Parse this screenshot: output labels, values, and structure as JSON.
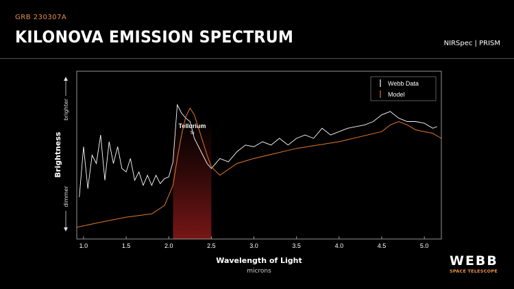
{
  "header": {
    "eyebrow": "GRB 230307A",
    "title": "KILONOVA EMISSION SPECTRUM",
    "instrument": "NIRSpec | PRISM"
  },
  "logo": {
    "name": "WEBB",
    "subtitle": "SPACE TELESCOPE"
  },
  "colors": {
    "background": "#000000",
    "accent": "#e8904a",
    "rule": "#555555",
    "data_line": "#ffffff",
    "model_line": "#e07a2e",
    "highlight_band": "#8b1a1a"
  },
  "chart_data": {
    "type": "line",
    "xlabel": "Wavelength of Light",
    "xunit": "microns",
    "ylabel": "Brightness",
    "y_top_label": "brighter",
    "y_bottom_label": "dimmer",
    "xlim": [
      0.92,
      5.2
    ],
    "ylim": [
      0,
      1
    ],
    "xticks": [
      1.0,
      1.5,
      2.0,
      2.5,
      3.0,
      3.5,
      4.0,
      4.5,
      5.0
    ],
    "xtick_labels": [
      "1.0",
      "1.5",
      "2.0",
      "2.5",
      "3.0",
      "3.5",
      "4.0",
      "4.5",
      "5.0"
    ],
    "grid": false,
    "legend_position": "top-right",
    "annotation": {
      "label": "Tellurium",
      "sublabel": "Te",
      "x_range": [
        2.05,
        2.5
      ]
    },
    "series": [
      {
        "name": "Webb Data",
        "x": [
          0.95,
          1.0,
          1.05,
          1.1,
          1.15,
          1.2,
          1.25,
          1.3,
          1.35,
          1.4,
          1.45,
          1.5,
          1.55,
          1.6,
          1.65,
          1.7,
          1.75,
          1.8,
          1.85,
          1.9,
          1.95,
          2.0,
          2.05,
          2.1,
          2.15,
          2.2,
          2.25,
          2.3,
          2.35,
          2.4,
          2.45,
          2.5,
          2.6,
          2.7,
          2.8,
          2.9,
          3.0,
          3.1,
          3.2,
          3.3,
          3.4,
          3.5,
          3.6,
          3.7,
          3.8,
          3.9,
          4.0,
          4.1,
          4.2,
          4.3,
          4.4,
          4.5,
          4.6,
          4.7,
          4.8,
          4.9,
          5.0,
          5.1,
          5.15
        ],
        "values": [
          0.25,
          0.55,
          0.3,
          0.5,
          0.45,
          0.62,
          0.35,
          0.58,
          0.45,
          0.55,
          0.42,
          0.4,
          0.48,
          0.35,
          0.4,
          0.32,
          0.38,
          0.32,
          0.38,
          0.33,
          0.36,
          0.37,
          0.46,
          0.8,
          0.75,
          0.72,
          0.7,
          0.6,
          0.55,
          0.5,
          0.45,
          0.42,
          0.48,
          0.46,
          0.52,
          0.56,
          0.55,
          0.58,
          0.56,
          0.6,
          0.56,
          0.6,
          0.62,
          0.6,
          0.66,
          0.62,
          0.64,
          0.66,
          0.67,
          0.68,
          0.7,
          0.74,
          0.76,
          0.72,
          0.7,
          0.7,
          0.69,
          0.66,
          0.67
        ]
      },
      {
        "name": "Model",
        "x": [
          0.92,
          1.2,
          1.5,
          1.8,
          1.95,
          2.05,
          2.1,
          2.15,
          2.2,
          2.25,
          2.3,
          2.35,
          2.4,
          2.45,
          2.5,
          2.6,
          2.8,
          3.0,
          3.5,
          4.0,
          4.5,
          4.6,
          4.7,
          4.8,
          4.9,
          5.0,
          5.1,
          5.2
        ],
        "values": [
          0.07,
          0.1,
          0.13,
          0.15,
          0.2,
          0.32,
          0.48,
          0.62,
          0.73,
          0.78,
          0.74,
          0.66,
          0.58,
          0.5,
          0.43,
          0.38,
          0.45,
          0.48,
          0.54,
          0.58,
          0.64,
          0.68,
          0.7,
          0.68,
          0.65,
          0.64,
          0.63,
          0.6
        ]
      }
    ]
  }
}
